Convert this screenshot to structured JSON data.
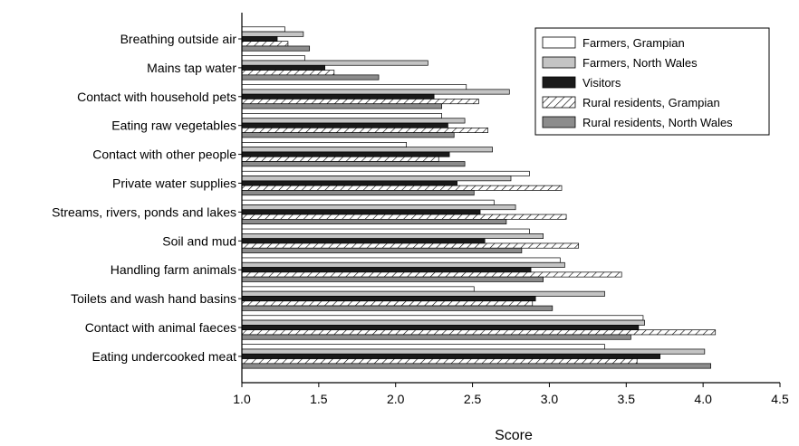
{
  "chart_data": {
    "type": "bar",
    "orientation": "horizontal",
    "categories": [
      "Breathing outside air",
      "Mains tap water",
      "Contact with household pets",
      "Eating raw vegetables",
      "Contact with other people",
      "Private water supplies",
      "Streams, rivers, ponds and lakes",
      "Soil and mud",
      "Handling farm animals",
      "Toilets and wash hand basins",
      "Contact with animal faeces",
      "Eating undercooked meat"
    ],
    "series": [
      {
        "name": "Farmers, Grampian",
        "style": "white",
        "values": [
          1.28,
          1.41,
          2.46,
          2.3,
          2.07,
          2.87,
          2.64,
          2.87,
          3.07,
          2.51,
          3.61,
          3.36
        ]
      },
      {
        "name": "Farmers, North Wales",
        "style": "lightgray",
        "values": [
          1.4,
          2.21,
          2.74,
          2.45,
          2.63,
          2.75,
          2.78,
          2.96,
          3.1,
          3.36,
          3.62,
          4.01
        ]
      },
      {
        "name": "Visitors",
        "style": "black",
        "values": [
          1.23,
          1.54,
          2.25,
          2.34,
          2.35,
          2.4,
          2.55,
          2.58,
          2.88,
          2.91,
          3.58,
          3.72
        ]
      },
      {
        "name": "Rural residents, Grampian",
        "style": "hatched",
        "values": [
          1.3,
          1.6,
          2.54,
          2.6,
          2.28,
          3.08,
          3.11,
          3.19,
          3.47,
          2.89,
          4.08,
          3.57
        ]
      },
      {
        "name": "Rural residents, North Wales",
        "style": "darkgray",
        "values": [
          1.44,
          1.89,
          2.3,
          2.38,
          2.45,
          2.51,
          2.72,
          2.82,
          2.96,
          3.02,
          3.53,
          4.05
        ]
      }
    ],
    "xlabel": "Score",
    "xlim": [
      1.0,
      4.5
    ],
    "xticks": [
      "1.0",
      "1.5",
      "2.0",
      "2.5",
      "3.0",
      "3.5",
      "4.0",
      "4.5"
    ],
    "legend_position": "top-right",
    "grid": false,
    "colors": {
      "white": "#ffffff",
      "lightgray": "#c4c4c4",
      "black": "#1a1a1a",
      "darkgray": "#8c8c8c",
      "outline": "#000000"
    }
  }
}
